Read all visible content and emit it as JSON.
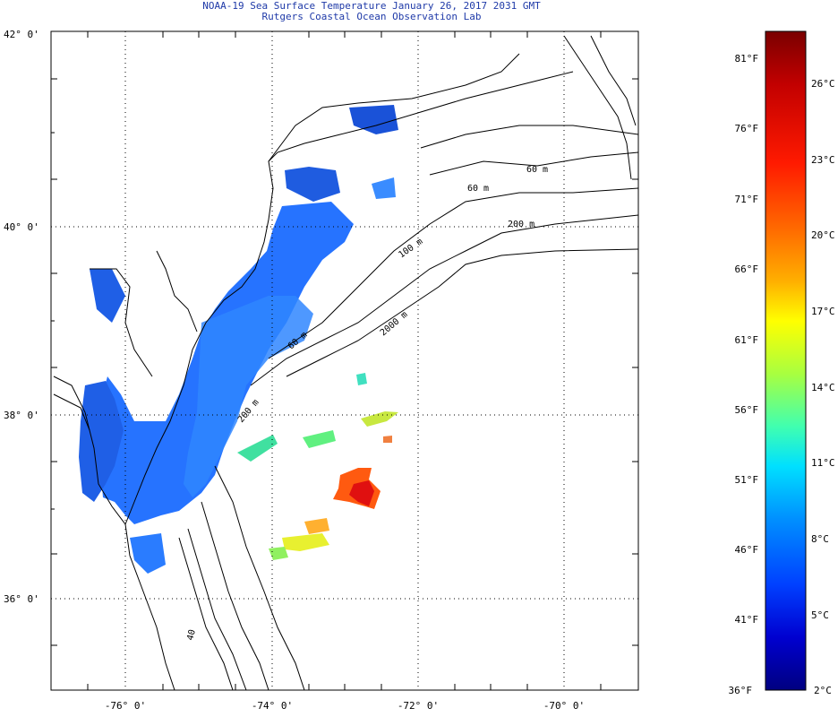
{
  "header": {
    "title": "NOAA-19 Sea Surface Temperature January 26, 2017 2031 GMT",
    "subtitle": "Rutgers Coastal Ocean Observation Lab"
  },
  "map": {
    "lon_range": [
      -77,
      -69
    ],
    "lat_range": [
      35,
      42
    ],
    "lat_labels": [
      "42° 0'",
      "40° 0'",
      "38° 0'",
      "36° 0'"
    ],
    "lon_labels": [
      "-76° 0'",
      "-74° 0'",
      "-72° 0'",
      "-70° 0'"
    ],
    "isobath_labels": [
      "60 m",
      "60 m",
      "200 m",
      "100 m",
      "2000 m",
      "60 m",
      "200 m",
      "40"
    ]
  },
  "colorbar": {
    "range_celsius": [
      2,
      28
    ],
    "fahrenheit_labels": [
      "81°F",
      "76°F",
      "71°F",
      "66°F",
      "61°F",
      "56°F",
      "51°F",
      "46°F",
      "41°F",
      "36°F"
    ],
    "celsius_labels": [
      "26°C",
      "23°C",
      "20°C",
      "17°C",
      "14°C",
      "11°C",
      "8°C",
      "5°C",
      "2°C"
    ],
    "colors": [
      "#7a0000",
      "#c20000",
      "#ff1a00",
      "#ff6a00",
      "#ffb000",
      "#ffff00",
      "#a8ff40",
      "#40ffb0",
      "#00e0ff",
      "#0090ff",
      "#0040ff",
      "#0000d0",
      "#000080"
    ]
  }
}
